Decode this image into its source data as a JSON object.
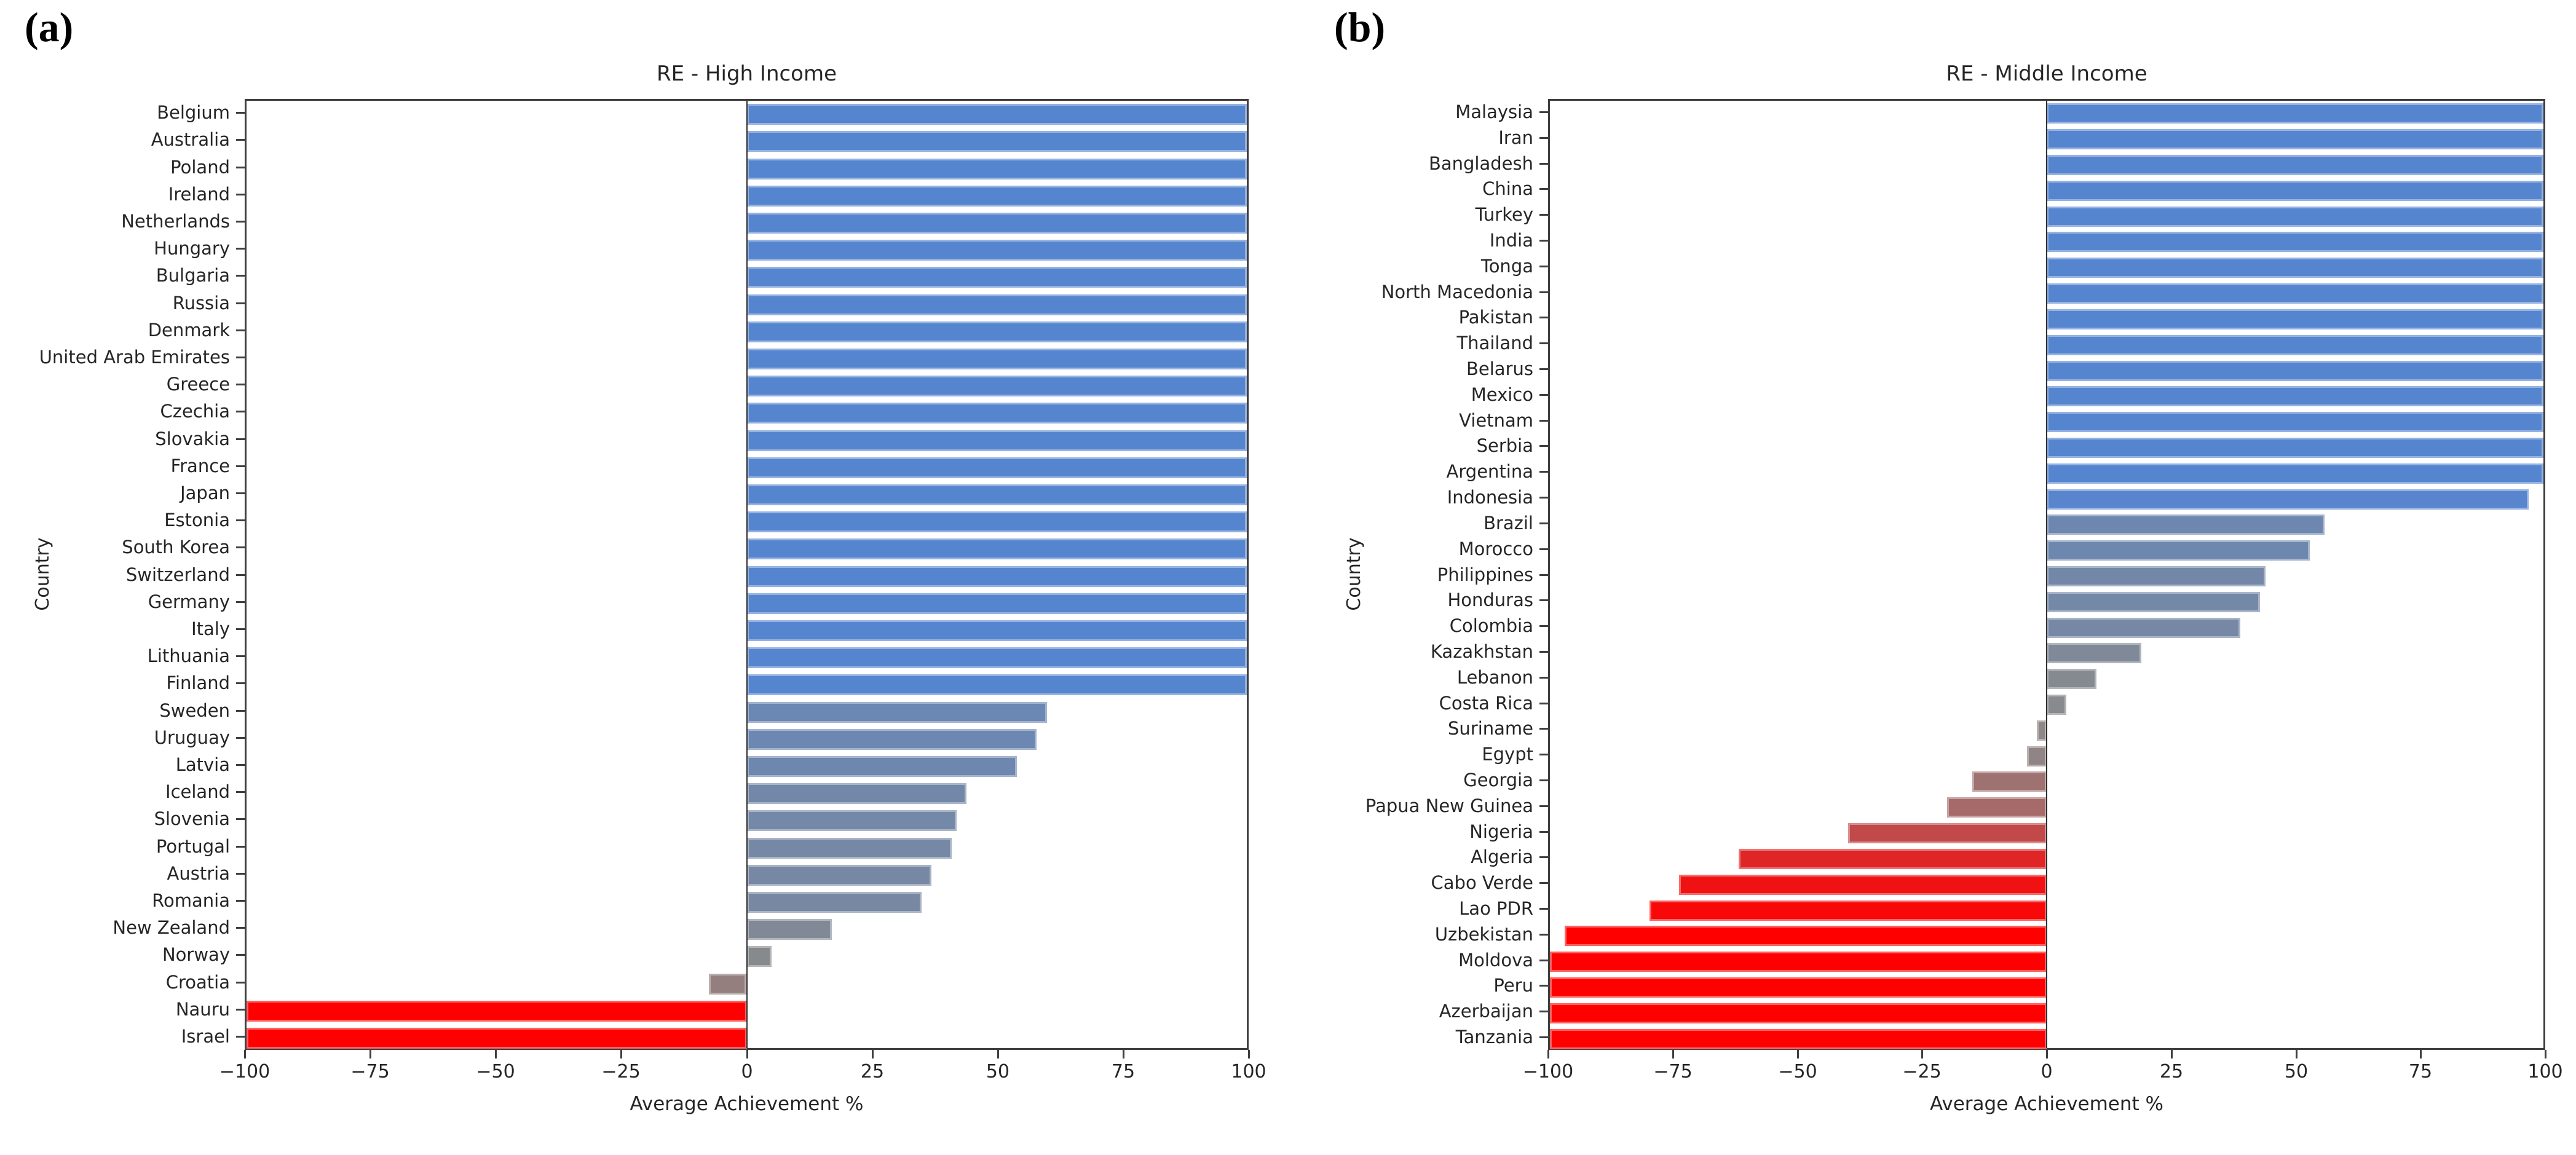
{
  "chart_data": [
    {
      "type": "bar",
      "orientation": "horizontal",
      "panel_label": "(a)",
      "title": "RE - High Income",
      "xlabel": "Average Achievement %",
      "ylabel": "Country",
      "xlim": [
        -100,
        100
      ],
      "xticks": [
        -100,
        -75,
        -50,
        -25,
        0,
        25,
        50,
        75,
        100
      ],
      "xtick_labels": [
        "−100",
        "−75",
        "−50",
        "−25",
        "0",
        "25",
        "50",
        "75",
        "100"
      ],
      "grid": false,
      "legend": null,
      "categories": [
        "Belgium",
        "Australia",
        "Poland",
        "Ireland",
        "Netherlands",
        "Hungary",
        "Bulgaria",
        "Russia",
        "Denmark",
        "United Arab Emirates",
        "Greece",
        "Czechia",
        "Slovakia",
        "France",
        "Japan",
        "Estonia",
        "South Korea",
        "Switzerland",
        "Germany",
        "Italy",
        "Lithuania",
        "Finland",
        "Sweden",
        "Uruguay",
        "Latvia",
        "Iceland",
        "Slovenia",
        "Portugal",
        "Austria",
        "Romania",
        "New Zealand",
        "Norway",
        "Croatia",
        "Nauru",
        "Israel"
      ],
      "values": [
        100,
        100,
        100,
        100,
        100,
        100,
        100,
        100,
        100,
        100,
        100,
        100,
        100,
        100,
        100,
        100,
        100,
        100,
        100,
        100,
        100,
        100,
        60,
        58,
        54,
        44,
        42,
        41,
        37,
        35,
        17,
        5,
        -7.5,
        -100,
        -100
      ],
      "colors": {
        "positive_max": "#5585cf",
        "neutral": "#8a8a8a",
        "negative_max": "#ff0000"
      }
    },
    {
      "type": "bar",
      "orientation": "horizontal",
      "panel_label": "(b)",
      "title": "RE - Middle Income",
      "xlabel": "Average Achievement %",
      "ylabel": "Country",
      "xlim": [
        -100,
        100
      ],
      "xticks": [
        -100,
        -75,
        -50,
        -25,
        0,
        25,
        50,
        75,
        100
      ],
      "xtick_labels": [
        "−100",
        "−75",
        "−50",
        "−25",
        "0",
        "25",
        "50",
        "75",
        "100"
      ],
      "grid": false,
      "legend": null,
      "categories": [
        "Malaysia",
        "Iran",
        "Bangladesh",
        "China",
        "Turkey",
        "India",
        "Tonga",
        "North Macedonia",
        "Pakistan",
        "Thailand",
        "Belarus",
        "Mexico",
        "Vietnam",
        "Serbia",
        "Argentina",
        "Indonesia",
        "Brazil",
        "Morocco",
        "Philippines",
        "Honduras",
        "Colombia",
        "Kazakhstan",
        "Lebanon",
        "Costa Rica",
        "Suriname",
        "Egypt",
        "Georgia",
        "Papua New Guinea",
        "Nigeria",
        "Algeria",
        "Cabo Verde",
        "Lao PDR",
        "Uzbekistan",
        "Moldova",
        "Peru",
        "Azerbaijan",
        "Tanzania"
      ],
      "values": [
        100,
        100,
        100,
        100,
        100,
        100,
        100,
        100,
        100,
        100,
        100,
        100,
        100,
        100,
        100,
        97,
        56,
        53,
        44,
        43,
        39,
        19,
        10,
        4,
        -2,
        -4,
        -15,
        -20,
        -40,
        -62,
        -74,
        -80,
        -97,
        -100,
        -100,
        -100,
        -100
      ],
      "colors": {
        "positive_max": "#5585cf",
        "neutral": "#8a8a8a",
        "negative_max": "#ff0000"
      }
    }
  ]
}
